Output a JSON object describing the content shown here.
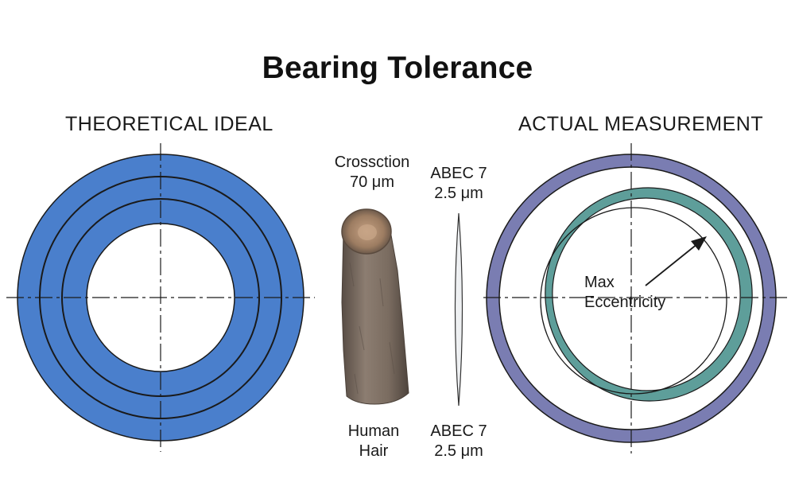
{
  "title": "Bearing Tolerance",
  "left_panel": {
    "heading": "THEORETICAL IDEAL"
  },
  "right_panel": {
    "heading": "ACTUAL MEASUREMENT",
    "annotation_line1": "Max",
    "annotation_line2": "Eccentricity"
  },
  "middle": {
    "hair_top_line1": "Crossction",
    "hair_top_line2": "70 μm",
    "hair_bottom_line1": "Human",
    "hair_bottom_line2": "Hair",
    "abec_top_line1": "ABEC 7",
    "abec_top_line2": "2.5 μm",
    "abec_bottom_line1": "ABEC 7",
    "abec_bottom_line2": "2.5 μm"
  },
  "colors": {
    "ideal_ring": "#4a7fcc",
    "outer_race": "#7a7db2",
    "inner_race": "#5e9e9a",
    "hair": "#7d6e62",
    "outline": "#1a1a1a"
  }
}
